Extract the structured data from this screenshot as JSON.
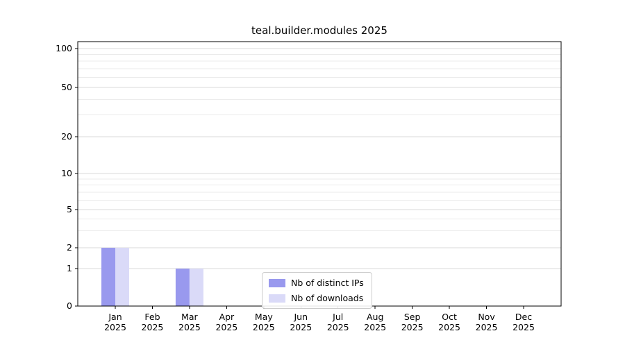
{
  "chart_data": {
    "type": "bar",
    "title": "teal.builder.modules 2025",
    "categories": [
      "Jan",
      "Feb",
      "Mar",
      "Apr",
      "May",
      "Jun",
      "Jul",
      "Aug",
      "Sep",
      "Oct",
      "Nov",
      "Dec"
    ],
    "x_year_label": "2025",
    "series": [
      {
        "name": "Nb of distinct IPs",
        "color": "#9999ee",
        "values": [
          2,
          0,
          1,
          0,
          0,
          0,
          0,
          0,
          0,
          0,
          0,
          0
        ]
      },
      {
        "name": "Nb of downloads",
        "color": "#dadaf8",
        "values": [
          2,
          0,
          1,
          0,
          0,
          0,
          0,
          0,
          0,
          0,
          0,
          0
        ]
      }
    ],
    "yscale": "symlog",
    "ylim": [
      0,
      100
    ],
    "yticks": [
      0,
      1,
      2,
      5,
      10,
      20,
      50,
      100
    ],
    "ytick_labels": [
      "0",
      "1",
      "2",
      "5",
      "10",
      "20",
      "50",
      "100"
    ],
    "minor_gridline_values": [
      3,
      4,
      6,
      7,
      8,
      9,
      30,
      40,
      60,
      70,
      80,
      90
    ],
    "grid": "horizontal",
    "legend_position": "lower center",
    "colors": {
      "axis_line": "#000000",
      "major_grid": "#d9d9d9",
      "minor_grid": "#ebebeb",
      "text": "#000000"
    }
  }
}
